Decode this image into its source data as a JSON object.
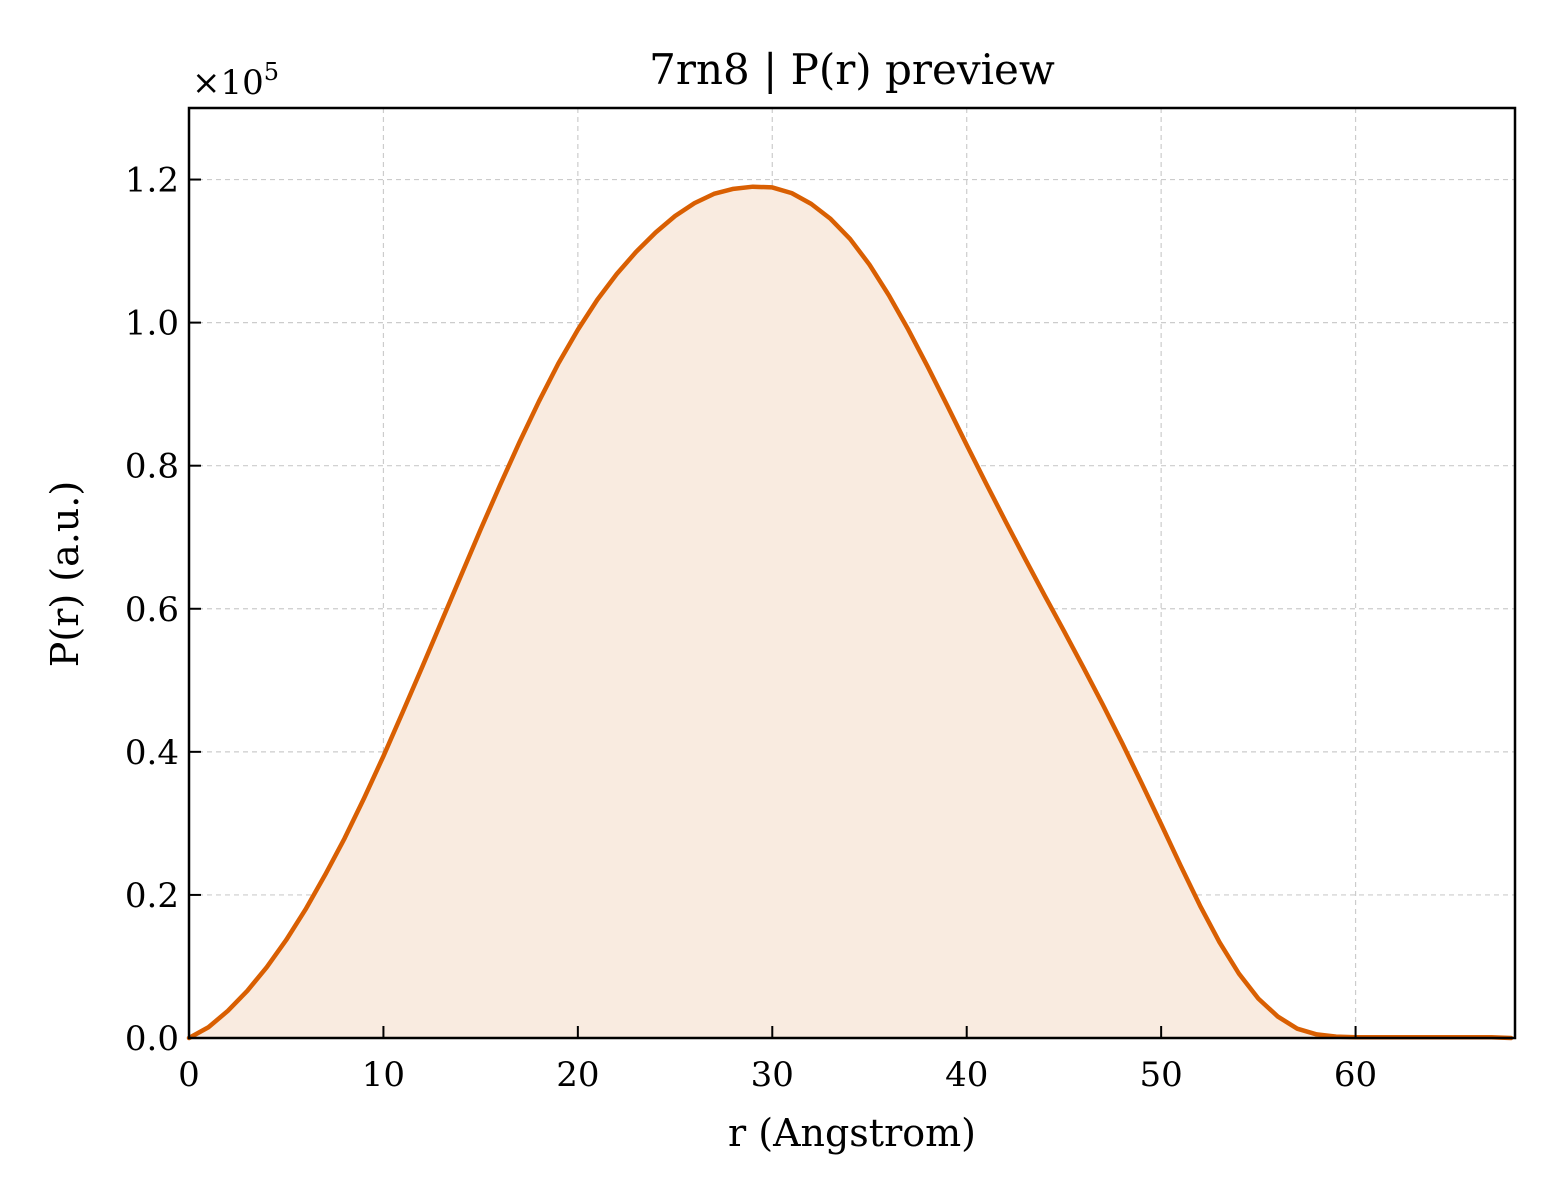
{
  "chart_data": {
    "type": "area",
    "title": "7rn8 | P(r) preview",
    "xlabel": "r (Angstrom)",
    "ylabel": "P(r) (a.u.)",
    "y_multiplier_label": "×10",
    "y_multiplier_exponent": "5",
    "xlim": [
      0,
      68.2
    ],
    "ylim": [
      0,
      1.3
    ],
    "x_ticks": [
      0,
      10,
      20,
      30,
      40,
      50,
      60
    ],
    "x_tick_labels": [
      "0",
      "10",
      "20",
      "30",
      "40",
      "50",
      "60"
    ],
    "y_ticks": [
      0.0,
      0.2,
      0.4,
      0.6,
      0.8,
      1.0,
      1.2
    ],
    "y_tick_labels": [
      "0.0",
      "0.2",
      "0.4",
      "0.6",
      "0.8",
      "1.0",
      "1.2"
    ],
    "grid": true,
    "line_color": "#d95f02",
    "fill_color": "#f9ebe0",
    "series": [
      {
        "x": [
          0,
          1,
          2,
          3,
          4,
          5,
          6,
          7,
          8,
          9,
          10,
          11,
          12,
          13,
          14,
          15,
          16,
          17,
          18,
          19,
          20,
          21,
          22,
          23,
          24,
          25,
          26,
          27,
          28,
          29,
          30,
          31,
          32,
          33,
          34,
          35,
          36,
          37,
          38,
          39,
          40,
          41,
          42,
          43,
          44,
          45,
          46,
          47,
          48,
          49,
          50,
          51,
          52,
          53,
          54,
          55,
          56,
          57,
          58,
          59,
          60,
          61,
          62,
          63,
          64,
          65,
          66,
          67,
          68
        ],
        "y": [
          0.0,
          0.015,
          0.038,
          0.066,
          0.099,
          0.137,
          0.18,
          0.228,
          0.279,
          0.335,
          0.394,
          0.456,
          0.519,
          0.583,
          0.647,
          0.711,
          0.773,
          0.833,
          0.89,
          0.943,
          0.99,
          1.032,
          1.068,
          1.099,
          1.126,
          1.149,
          1.167,
          1.18,
          1.187,
          1.19,
          1.189,
          1.181,
          1.166,
          1.145,
          1.117,
          1.081,
          1.038,
          0.99,
          0.938,
          0.884,
          0.829,
          0.775,
          0.722,
          0.67,
          0.619,
          0.569,
          0.518,
          0.466,
          0.412,
          0.356,
          0.299,
          0.241,
          0.185,
          0.134,
          0.09,
          0.055,
          0.03,
          0.013,
          0.005,
          0.002,
          0.001,
          0.001,
          0.001,
          0.001,
          0.001,
          0.001,
          0.001,
          0.001,
          0.0
        ]
      }
    ]
  }
}
